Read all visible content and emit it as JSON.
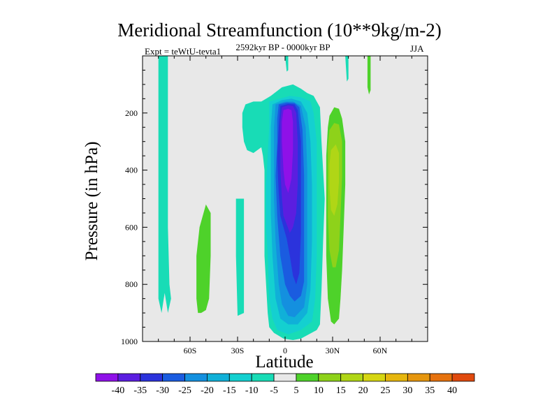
{
  "chart_data": {
    "type": "contour",
    "title": "Meridional Streamfunction (10**9kg/m-2)",
    "subtitle": "2592kyr BP - 0000kyr BP",
    "left_label": "Expt = teWtU-tevta1",
    "right_label": "JJA",
    "xlabel": "Latitude",
    "ylabel": "Pressure (in hPa)",
    "xlim": [
      -90,
      90
    ],
    "ylim": [
      1000,
      0
    ],
    "x_ticks": [
      {
        "value": -60,
        "label": "60S"
      },
      {
        "value": -30,
        "label": "30S"
      },
      {
        "value": 0,
        "label": "0"
      },
      {
        "value": 30,
        "label": "30N"
      },
      {
        "value": 60,
        "label": "60N"
      }
    ],
    "y_ticks": [
      {
        "value": 200,
        "label": "200"
      },
      {
        "value": 400,
        "label": "400"
      },
      {
        "value": 600,
        "label": "600"
      },
      {
        "value": 800,
        "label": "800"
      },
      {
        "value": 1000,
        "label": "1000"
      }
    ],
    "colorbar": {
      "levels": [
        -40,
        -35,
        -30,
        -25,
        -20,
        -15,
        -10,
        -5,
        5,
        10,
        15,
        20,
        25,
        30,
        35,
        40
      ],
      "labels": [
        "-40",
        "-35",
        "-30",
        "-25",
        "-20",
        "-15",
        "-10",
        "-5",
        "5",
        "10",
        "15",
        "20",
        "25",
        "30",
        "35",
        "40"
      ],
      "colors": [
        "#8f11e8",
        "#5b1ee0",
        "#2b33dc",
        "#1a5ce0",
        "#1490df",
        "#10b0d8",
        "#14d0d0",
        "#18dcb6",
        "#e8e8e8",
        "#4ed22a",
        "#8ed21a",
        "#b0d616",
        "#d6d612",
        "#e6b60e",
        "#e6960e",
        "#e6720e",
        "#e04a0e"
      ]
    },
    "regions": [
      {
        "label": "-5",
        "color": "#18dcb6",
        "points": [
          [
            -80,
            0
          ],
          [
            -74,
            0
          ],
          [
            -74,
            600
          ],
          [
            -73,
            800
          ],
          [
            -72,
            850
          ],
          [
            -74,
            900
          ],
          [
            -76,
            830
          ],
          [
            -78,
            900
          ],
          [
            -80,
            850
          ]
        ]
      },
      {
        "label": "10",
        "color": "#4ed22a",
        "points": [
          [
            -50,
            520
          ],
          [
            -47,
            550
          ],
          [
            -47,
            700
          ],
          [
            -48,
            850
          ],
          [
            -50,
            890
          ],
          [
            -53,
            900
          ],
          [
            -55,
            900
          ],
          [
            -56,
            850
          ],
          [
            -56,
            700
          ],
          [
            -54,
            600
          ]
        ]
      },
      {
        "label": "-5",
        "color": "#18dcb6",
        "points": [
          [
            -31,
            500
          ],
          [
            -26,
            500
          ],
          [
            -26,
            900
          ],
          [
            -30,
            910
          ],
          [
            -31,
            700
          ]
        ]
      },
      {
        "label": "-5",
        "color": "#18dcb6",
        "points": [
          [
            -9,
            140
          ],
          [
            -2,
            110
          ],
          [
            5,
            100
          ],
          [
            10,
            115
          ],
          [
            14,
            130
          ],
          [
            18,
            140
          ],
          [
            20,
            160
          ],
          [
            22,
            180
          ],
          [
            23,
            300
          ],
          [
            25,
            500
          ],
          [
            24,
            650
          ],
          [
            23,
            820
          ],
          [
            22,
            940
          ],
          [
            20,
            960
          ],
          [
            15,
            975
          ],
          [
            10,
            990
          ],
          [
            5,
            995
          ],
          [
            -1,
            990
          ],
          [
            -4,
            980
          ],
          [
            -7,
            970
          ],
          [
            -10,
            950
          ],
          [
            -11,
            900
          ],
          [
            -12,
            800
          ],
          [
            -13,
            700
          ],
          [
            -13,
            600
          ],
          [
            -13,
            500
          ],
          [
            -13,
            400
          ],
          [
            -14,
            350
          ],
          [
            -15,
            320
          ],
          [
            -20,
            340
          ],
          [
            -24,
            330
          ],
          [
            -26,
            300
          ],
          [
            -27,
            250
          ],
          [
            -27,
            200
          ],
          [
            -25,
            170
          ],
          [
            -20,
            160
          ],
          [
            -15,
            160
          ]
        ]
      },
      {
        "label": "-10",
        "color": "#14d0d0",
        "points": [
          [
            -10,
            160
          ],
          [
            -3,
            150
          ],
          [
            3,
            140
          ],
          [
            10,
            145
          ],
          [
            16,
            160
          ],
          [
            18,
            200
          ],
          [
            20,
            300
          ],
          [
            20,
            400
          ],
          [
            20,
            500
          ],
          [
            20,
            600
          ],
          [
            20,
            700
          ],
          [
            19,
            850
          ],
          [
            17,
            930
          ],
          [
            10,
            960
          ],
          [
            2,
            975
          ],
          [
            -5,
            960
          ],
          [
            -8,
            920
          ],
          [
            -10,
            850
          ],
          [
            -11,
            700
          ],
          [
            -12,
            600
          ],
          [
            -12,
            450
          ],
          [
            -11,
            350
          ],
          [
            -10,
            250
          ]
        ]
      },
      {
        "label": "-15",
        "color": "#10b0d8",
        "points": [
          [
            -8,
            170
          ],
          [
            -2,
            155
          ],
          [
            4,
            150
          ],
          [
            10,
            160
          ],
          [
            14,
            200
          ],
          [
            16,
            300
          ],
          [
            17,
            450
          ],
          [
            17,
            650
          ],
          [
            16,
            820
          ],
          [
            14,
            900
          ],
          [
            8,
            940
          ],
          [
            2,
            940
          ],
          [
            -3,
            920
          ],
          [
            -6,
            850
          ],
          [
            -8,
            700
          ],
          [
            -9,
            550
          ],
          [
            -9,
            400
          ],
          [
            -9,
            250
          ]
        ]
      },
      {
        "label": "-20",
        "color": "#1490df",
        "points": [
          [
            -6,
            170
          ],
          [
            0,
            160
          ],
          [
            5,
            160
          ],
          [
            10,
            175
          ],
          [
            13,
            250
          ],
          [
            14,
            400
          ],
          [
            14,
            600
          ],
          [
            14,
            800
          ],
          [
            12,
            880
          ],
          [
            6,
            915
          ],
          [
            2,
            910
          ],
          [
            -2,
            870
          ],
          [
            -4,
            800
          ],
          [
            -6,
            650
          ],
          [
            -7,
            500
          ],
          [
            -7,
            350
          ],
          [
            -7,
            250
          ]
        ]
      },
      {
        "label": "-25",
        "color": "#1a5ce0",
        "points": [
          [
            -4,
            170
          ],
          [
            1,
            163
          ],
          [
            6,
            165
          ],
          [
            9,
            180
          ],
          [
            11,
            260
          ],
          [
            12,
            420
          ],
          [
            12,
            600
          ],
          [
            12,
            790
          ],
          [
            10,
            840
          ],
          [
            6,
            860
          ],
          [
            3,
            840
          ],
          [
            0,
            800
          ],
          [
            -3,
            700
          ],
          [
            -5,
            560
          ],
          [
            -6,
            420
          ],
          [
            -5,
            300
          ],
          [
            -5,
            220
          ]
        ]
      },
      {
        "label": "-30",
        "color": "#2b33dc",
        "points": [
          [
            -3,
            175
          ],
          [
            2,
            168
          ],
          [
            6,
            170
          ],
          [
            8,
            190
          ],
          [
            10,
            300
          ],
          [
            10,
            450
          ],
          [
            10,
            620
          ],
          [
            9,
            760
          ],
          [
            7,
            800
          ],
          [
            5,
            770
          ],
          [
            3,
            700
          ],
          [
            1,
            640
          ],
          [
            -1,
            600
          ],
          [
            -3,
            560
          ],
          [
            -4,
            480
          ],
          [
            -5,
            360
          ],
          [
            -4,
            250
          ]
        ]
      },
      {
        "label": "-35",
        "color": "#5b1ee0",
        "points": [
          [
            -2,
            180
          ],
          [
            2,
            173
          ],
          [
            5,
            176
          ],
          [
            7,
            200
          ],
          [
            8,
            300
          ],
          [
            8,
            450
          ],
          [
            7,
            550
          ],
          [
            5,
            600
          ],
          [
            3,
            620
          ],
          [
            1,
            590
          ],
          [
            -1,
            560
          ],
          [
            -2,
            500
          ],
          [
            -3,
            400
          ],
          [
            -3,
            300
          ],
          [
            -3,
            230
          ]
        ]
      },
      {
        "label": "-40",
        "color": "#8f11e8",
        "points": [
          [
            -1,
            190
          ],
          [
            2,
            185
          ],
          [
            4,
            190
          ],
          [
            5,
            230
          ],
          [
            5,
            330
          ],
          [
            4,
            430
          ],
          [
            2,
            480
          ],
          [
            0,
            450
          ],
          [
            -1,
            400
          ],
          [
            -2,
            300
          ],
          [
            -2,
            230
          ]
        ]
      },
      {
        "label": "10",
        "color": "#4ed22a",
        "points": [
          [
            28,
            210
          ],
          [
            31,
            180
          ],
          [
            34,
            185
          ],
          [
            36,
            220
          ],
          [
            38,
            300
          ],
          [
            38,
            450
          ],
          [
            37,
            600
          ],
          [
            36,
            750
          ],
          [
            35,
            850
          ],
          [
            34,
            920
          ],
          [
            31,
            940
          ],
          [
            29,
            930
          ],
          [
            27,
            850
          ],
          [
            26,
            700
          ],
          [
            26,
            500
          ],
          [
            26,
            350
          ],
          [
            27,
            250
          ]
        ]
      },
      {
        "label": "15",
        "color": "#8ed21a",
        "points": [
          [
            28,
            260
          ],
          [
            31,
            235
          ],
          [
            34,
            240
          ],
          [
            36,
            300
          ],
          [
            36,
            420
          ],
          [
            35,
            560
          ],
          [
            34,
            680
          ],
          [
            32,
            740
          ],
          [
            30,
            740
          ],
          [
            28,
            680
          ],
          [
            27,
            560
          ],
          [
            27,
            420
          ],
          [
            27,
            320
          ]
        ]
      },
      {
        "label": "20",
        "color": "#b0d616",
        "points": [
          [
            29,
            330
          ],
          [
            32,
            310
          ],
          [
            34,
            340
          ],
          [
            34,
            440
          ],
          [
            33,
            520
          ],
          [
            31,
            560
          ],
          [
            29,
            540
          ],
          [
            28,
            460
          ],
          [
            28,
            380
          ]
        ]
      },
      {
        "label": "-5",
        "color": "#18dcb6",
        "points": [
          [
            0,
            0
          ],
          [
            2,
            0
          ],
          [
            2,
            50
          ],
          [
            1,
            55
          ]
        ]
      },
      {
        "label": "-5",
        "color": "#18dcb6",
        "points": [
          [
            38,
            0
          ],
          [
            40,
            0
          ],
          [
            40,
            80
          ],
          [
            39,
            90
          ]
        ]
      },
      {
        "label": "10",
        "color": "#4ed22a",
        "points": [
          [
            52,
            0
          ],
          [
            54,
            0
          ],
          [
            54,
            120
          ],
          [
            53,
            135
          ],
          [
            52,
            110
          ]
        ]
      }
    ]
  }
}
